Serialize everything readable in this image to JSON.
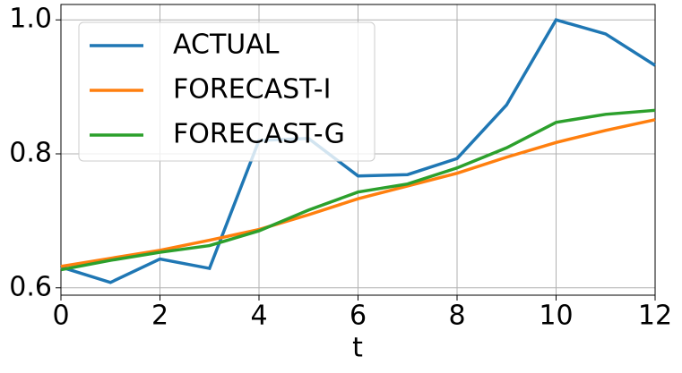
{
  "chart_data": {
    "type": "line",
    "x_label": "t",
    "x": [
      0,
      1,
      2,
      3,
      4,
      5,
      6,
      7,
      8,
      9,
      10,
      11,
      12
    ],
    "series": [
      {
        "name": "ACTUAL",
        "color": "#1f77b4",
        "values": [
          0.631,
          0.608,
          0.643,
          0.629,
          0.82,
          0.823,
          0.767,
          0.769,
          0.793,
          0.873,
          1.0,
          0.979,
          0.932
        ]
      },
      {
        "name": "FORECAST-I",
        "color": "#ff7f0e",
        "values": [
          0.632,
          0.644,
          0.656,
          0.671,
          0.687,
          0.709,
          0.733,
          0.752,
          0.771,
          0.795,
          0.817,
          0.835,
          0.851
        ]
      },
      {
        "name": "FORECAST-G",
        "color": "#2ca02c",
        "values": [
          0.627,
          0.641,
          0.653,
          0.663,
          0.685,
          0.716,
          0.743,
          0.755,
          0.779,
          0.809,
          0.847,
          0.859,
          0.865
        ]
      }
    ],
    "xlim": [
      0,
      12
    ],
    "xticks": [
      0,
      2,
      4,
      6,
      8,
      10,
      12
    ],
    "ylim": [
      0.589,
      1.023
    ],
    "yticks": [
      0.6,
      0.8,
      {
        "value": 1.0,
        "label": "1.0"
      }
    ],
    "grid": true,
    "legend": "upper-left"
  }
}
